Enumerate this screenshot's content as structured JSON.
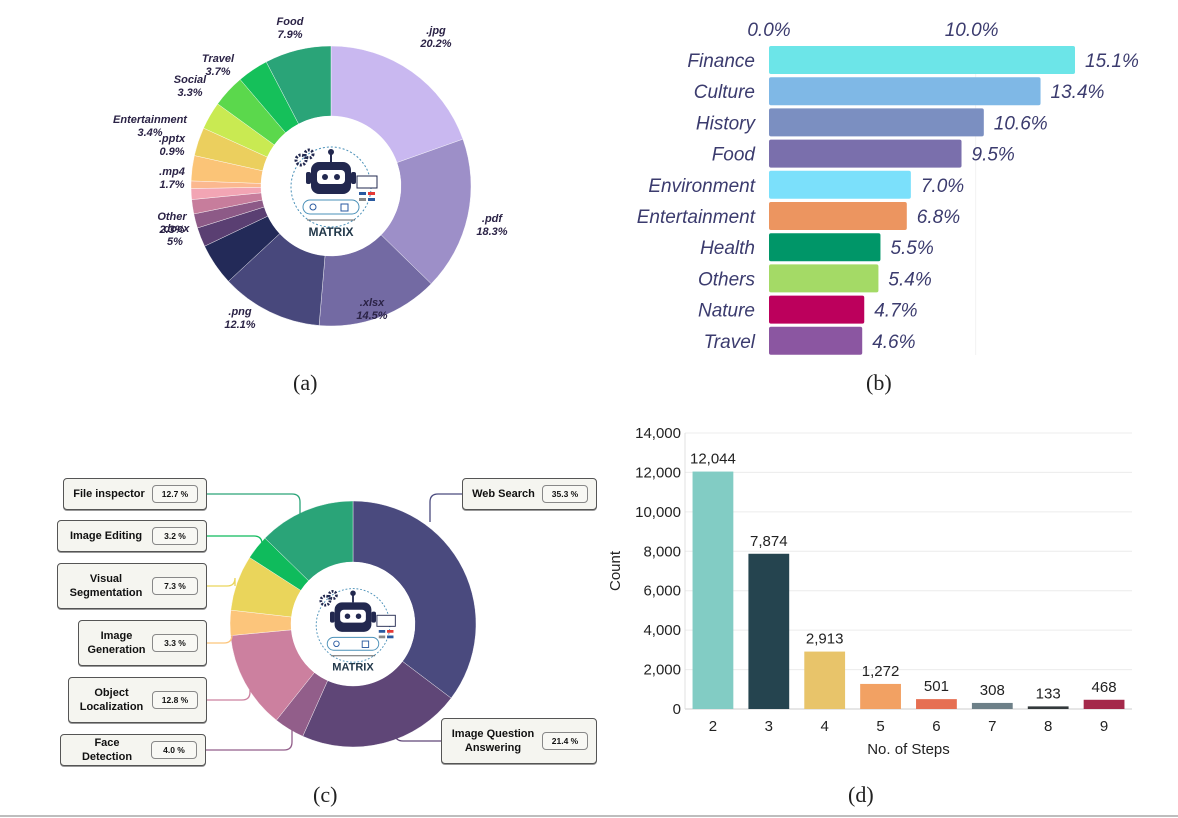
{
  "captions": [
    "(a)",
    "(b)",
    "(c)",
    "(d)"
  ],
  "logo": {
    "text": "MATRIX"
  },
  "chart_data": [
    {
      "id": "a",
      "type": "pie",
      "title": "",
      "subtype": "donut",
      "slices": [
        {
          "label": ".jpg",
          "value": 20.2,
          "display": "20.2%",
          "color": "#c9b8f0",
          "labeled": true
        },
        {
          "label": ".pdf",
          "value": 18.3,
          "display": "18.3%",
          "color": "#9d8fc8",
          "labeled": true
        },
        {
          "label": ".xlsx",
          "value": 14.5,
          "display": "14.5%",
          "color": "#736aa3",
          "labeled": true
        },
        {
          "label": ".png",
          "value": 12.1,
          "display": "12.1%",
          "color": "#48487c",
          "labeled": true
        },
        {
          "label": ".docx",
          "value": 5.0,
          "display": "5%",
          "color": "#232a58",
          "labeled": true
        },
        {
          "label": "Other",
          "value": 2.3,
          "display": "2.3%",
          "color": "#5a3f72",
          "labeled": true
        },
        {
          "label": "unlabeled-1",
          "value": 1.7,
          "display": "",
          "color": "#8d5a87",
          "labeled": false
        },
        {
          "label": ".mp4",
          "value": 1.7,
          "display": "1.7%",
          "color": "#c77d9c",
          "labeled": true
        },
        {
          "label": "unlabeled-2",
          "value": 1.3,
          "display": "",
          "color": "#f2a5b4",
          "labeled": false
        },
        {
          "label": ".pptx",
          "value": 0.9,
          "display": "0.9%",
          "color": "#fbb88f",
          "labeled": true
        },
        {
          "label": "unlabeled-3",
          "value": 3.0,
          "display": "",
          "color": "#fbc477",
          "labeled": false
        },
        {
          "label": "Entertainment",
          "value": 3.4,
          "display": "3.4%",
          "color": "#ebcf5e",
          "labeled": false
        },
        {
          "label": "Social",
          "value": 3.3,
          "display": "3.3%",
          "color": "#c9ea52",
          "labeled": true
        },
        {
          "label": "unlabeled-4",
          "value": 3.9,
          "display": "",
          "color": "#5bd84c",
          "labeled": false
        },
        {
          "label": "Travel",
          "value": 3.7,
          "display": "3.7%",
          "color": "#15c05a",
          "labeled": true
        },
        {
          "label": "Food",
          "value": 7.9,
          "display": "7.9%",
          "color": "#2aa478",
          "labeled": true
        }
      ],
      "labels": [
        {
          "name": ".jpg",
          "pct": "20.2%"
        },
        {
          "name": ".pdf",
          "pct": "18.3%"
        },
        {
          "name": ".xlsx",
          "pct": "14.5%"
        },
        {
          "name": ".png",
          "pct": "12.1%"
        },
        {
          "name": ".docx",
          "pct": "5%"
        },
        {
          "name": "Other",
          "pct": "2.3%"
        },
        {
          "name": ".mp4",
          "pct": "1.7%"
        },
        {
          "name": ".pptx",
          "pct": "0.9%"
        },
        {
          "name": "Entertainment",
          "pct": "3.4%"
        },
        {
          "name": "Social",
          "pct": "3.3%"
        },
        {
          "name": "Travel",
          "pct": "3.7%"
        },
        {
          "name": "Food",
          "pct": "7.9%"
        }
      ]
    },
    {
      "id": "b",
      "type": "bar",
      "orientation": "horizontal",
      "title": "",
      "xlabel": "",
      "ylabel": "",
      "xlim": [
        0,
        16.5
      ],
      "xticks": [
        {
          "value": 0,
          "label": "0.0%"
        },
        {
          "value": 10,
          "label": "10.0%"
        }
      ],
      "categories": [
        "Finance",
        "Culture",
        "History",
        "Food",
        "Environment",
        "Entertainment",
        "Health",
        "Others",
        "Nature",
        "Travel"
      ],
      "values": [
        15.1,
        13.4,
        10.6,
        9.5,
        7.0,
        6.8,
        5.5,
        5.4,
        4.7,
        4.6
      ],
      "value_labels": [
        "15.1%",
        "13.4%",
        "10.6%",
        "9.5%",
        "7.0%",
        "6.8%",
        "5.5%",
        "5.4%",
        "4.7%",
        "4.6%"
      ],
      "colors": [
        "#6ce5e8",
        "#7fb8e6",
        "#7b8fc1",
        "#7a6fac",
        "#7be0fb",
        "#ec9560",
        "#009668",
        "#a4da66",
        "#bc005c",
        "#8b56a1"
      ],
      "text_color": "#3b3b6e",
      "grid": false
    },
    {
      "id": "c",
      "type": "pie",
      "subtype": "donut",
      "title": "",
      "slices": [
        {
          "label": "Web Search",
          "value": 35.3,
          "display": "35.3 %",
          "color": "#4a4a7e"
        },
        {
          "label": "Image Question Answering",
          "value": 21.4,
          "display": "21.4 %",
          "color": "#5f4677"
        },
        {
          "label": "Face Detection",
          "value": 4.0,
          "display": "4.0 %",
          "color": "#925e8a"
        },
        {
          "label": "Object Localization",
          "value": 12.8,
          "display": "12.8 %",
          "color": "#cc809f"
        },
        {
          "label": "Image Generation",
          "value": 3.3,
          "display": "3.3 %",
          "color": "#fcc57b"
        },
        {
          "label": "Visual Segmentation",
          "value": 7.3,
          "display": "7.3 %",
          "color": "#ead55b"
        },
        {
          "label": "Image Editing",
          "value": 3.2,
          "display": "3.2 %",
          "color": "#0fbb5c"
        },
        {
          "label": "File inspector",
          "value": 12.7,
          "display": "12.7 %",
          "color": "#2aa478"
        }
      ],
      "boxes": [
        {
          "name_lines": [
            "File inspector"
          ],
          "pct": "12.7 %"
        },
        {
          "name_lines": [
            "Image Editing"
          ],
          "pct": "3.2 %"
        },
        {
          "name_lines": [
            "Visual",
            "Segmentation"
          ],
          "pct": "7.3 %"
        },
        {
          "name_lines": [
            "Image",
            "Generation"
          ],
          "pct": "3.3 %"
        },
        {
          "name_lines": [
            "Object",
            "Localization"
          ],
          "pct": "12.8 %"
        },
        {
          "name_lines": [
            "Face Detection"
          ],
          "pct": "4.0 %"
        },
        {
          "name_lines": [
            "Web Search"
          ],
          "pct": "35.3 %"
        },
        {
          "name_lines": [
            "Image Question",
            "Answering"
          ],
          "pct": "21.4 %"
        }
      ]
    },
    {
      "id": "d",
      "type": "bar",
      "title": "",
      "xlabel": "No. of Steps",
      "ylabel": "Count",
      "ylim": [
        0,
        14000
      ],
      "yticks": [
        0,
        2000,
        4000,
        6000,
        8000,
        10000,
        12000,
        14000
      ],
      "ytick_labels": [
        "0",
        "2,000",
        "4,000",
        "6,000",
        "8,000",
        "10,000",
        "12,000",
        "14,000"
      ],
      "categories": [
        "2",
        "3",
        "4",
        "5",
        "6",
        "7",
        "8",
        "9"
      ],
      "values": [
        12044,
        7874,
        2913,
        1272,
        501,
        308,
        133,
        468
      ],
      "value_labels": [
        "12,044",
        "7,874",
        "2,913",
        "1,272",
        "501",
        "308",
        "133",
        "468"
      ],
      "colors": [
        "#82ccc4",
        "#25444f",
        "#e8c46a",
        "#f2a163",
        "#e66f52",
        "#6d8088",
        "#333a3c",
        "#a4294a"
      ],
      "grid": true
    }
  ]
}
